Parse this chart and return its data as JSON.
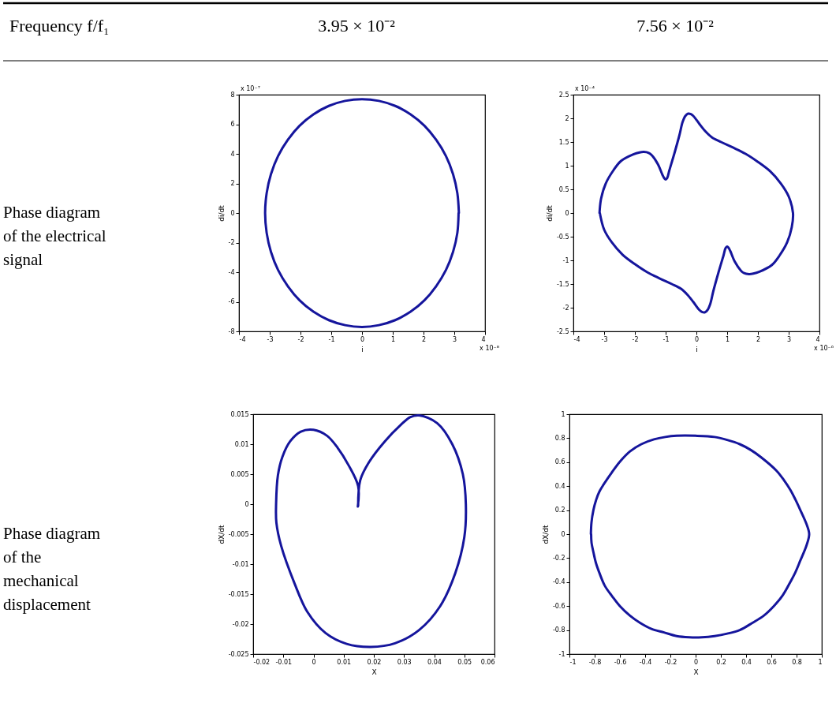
{
  "chart_data": [
    {
      "type": "other",
      "annotations": [
        "Frequency f/f₁",
        "3.95 × 10⁻²",
        "7.56 × 10⁻²",
        "Phase diagram of the electrical signal",
        "Phase diagram of the mechanical displacement"
      ]
    },
    {
      "type": "line",
      "xlabel": "i",
      "ylabel": "di/dt",
      "annotations": [
        "x 10⁻⁷",
        "x 10⁻⁸"
      ],
      "grid": false,
      "xlim": [
        -4,
        4
      ],
      "xticks": [
        -4,
        -3,
        -2,
        -1,
        0,
        1,
        2,
        3,
        4
      ],
      "ylim": [
        -8,
        8
      ],
      "yticks": [
        -8,
        -6,
        -4,
        -2,
        0,
        2,
        4,
        6,
        8
      ],
      "series": [
        {
          "color": "#15159c",
          "x": [
            3.15,
            3.1,
            2.96,
            2.73,
            2.41,
            2.03,
            1.58,
            1.08,
            0.55,
            0,
            -0.55,
            -1.08,
            -1.58,
            -2.03,
            -2.41,
            -2.73,
            -2.96,
            -3.1,
            -3.15,
            -3.1,
            -2.96,
            -2.73,
            -2.41,
            -2.03,
            -1.58,
            -1.08,
            -0.55,
            0,
            0.55,
            1.08,
            1.58,
            2.03,
            2.41,
            2.73,
            2.96,
            3.1,
            3.14
          ],
          "values": [
            0,
            1.34,
            2.63,
            3.85,
            4.95,
            5.9,
            6.67,
            7.24,
            7.58,
            7.7,
            7.58,
            7.24,
            6.67,
            5.9,
            4.95,
            3.85,
            2.63,
            1.34,
            0,
            -1.34,
            -2.63,
            -3.85,
            -4.95,
            -5.9,
            -6.67,
            -7.24,
            -7.58,
            -7.7,
            -7.58,
            -7.24,
            -6.67,
            -5.9,
            -4.95,
            -3.85,
            -2.63,
            -1.34,
            0
          ]
        }
      ]
    },
    {
      "type": "line",
      "xlabel": "i",
      "ylabel": "di/dt",
      "annotations": [
        "x 10⁻⁴",
        "x 10⁻⁶"
      ],
      "grid": false,
      "xlim": [
        -4,
        4
      ],
      "xticks": [
        -4,
        -3,
        -2,
        -1,
        0,
        1,
        2,
        3,
        4
      ],
      "ylim": [
        -2.5,
        2.5
      ],
      "yticks": [
        -2.5,
        -2,
        -1.5,
        -1,
        -0.5,
        0,
        0.5,
        1,
        1.5,
        2,
        2.5
      ],
      "series": [
        {
          "color": "#15159c",
          "x": [
            -3.15,
            -3.1,
            -2.95,
            -2.7,
            -2.45,
            -2.05,
            -1.85,
            -1.71,
            -1.55,
            -1.45,
            -1.25,
            -1.1,
            -1.04,
            -1.0,
            -0.95,
            -0.88,
            -0.72,
            -0.55,
            -0.45,
            -0.36,
            -0.27,
            -0.18,
            -0.1,
            0.1,
            0.3,
            0.5,
            0.8,
            1.2,
            1.6,
            2.0,
            2.4,
            2.75,
            3.0,
            3.14,
            3.1,
            2.95,
            2.7,
            2.45,
            2.05,
            1.85,
            1.71,
            1.55,
            1.45,
            1.25,
            1.1,
            1.04,
            1.0,
            0.95,
            0.88,
            0.72,
            0.55,
            0.45,
            0.36,
            0.27,
            0.18,
            0.1,
            -0.1,
            -0.3,
            -0.5,
            -0.8,
            -1.2,
            -1.6,
            -2.0,
            -2.4,
            -2.75,
            -3.0,
            -3.14
          ],
          "values": [
            0,
            0.3,
            0.62,
            0.9,
            1.1,
            1.24,
            1.28,
            1.29,
            1.27,
            1.22,
            1.03,
            0.8,
            0.73,
            0.71,
            0.74,
            0.9,
            1.25,
            1.65,
            1.92,
            2.05,
            2.1,
            2.09,
            2.05,
            1.88,
            1.72,
            1.6,
            1.5,
            1.38,
            1.25,
            1.08,
            0.88,
            0.62,
            0.35,
            0,
            -0.3,
            -0.62,
            -0.9,
            -1.1,
            -1.24,
            -1.28,
            -1.29,
            -1.27,
            -1.22,
            -1.03,
            -0.8,
            -0.73,
            -0.71,
            -0.74,
            -0.9,
            -1.25,
            -1.65,
            -1.92,
            -2.05,
            -2.1,
            -2.09,
            -2.05,
            -1.88,
            -1.72,
            -1.6,
            -1.5,
            -1.38,
            -1.25,
            -1.08,
            -0.88,
            -0.62,
            -0.35,
            0
          ]
        }
      ]
    },
    {
      "type": "line",
      "xlabel": "X",
      "ylabel": "dX/dt",
      "grid": false,
      "xlim": [
        -0.02,
        0.06
      ],
      "xticks": [
        -0.02,
        -0.01,
        0,
        0.01,
        0.02,
        0.03,
        0.04,
        0.05,
        0.06
      ],
      "ylim": [
        -0.025,
        0.015
      ],
      "yticks": [
        -0.025,
        -0.02,
        -0.015,
        -0.01,
        -0.005,
        0,
        0.005,
        0.01,
        0.015
      ],
      "series": [
        {
          "color": "#15159c",
          "x": [
            0.0147,
            0.0148,
            0.0115,
            0.008,
            0.0045,
            0.0,
            -0.0042,
            -0.0077,
            -0.0103,
            -0.0118,
            -0.0124,
            -0.0123,
            -0.0107,
            -0.0063,
            -0.002,
            0.004,
            0.011,
            0.019,
            0.027,
            0.035,
            0.042,
            0.047,
            0.05,
            0.0505,
            0.0495,
            0.046,
            0.041,
            0.035,
            0.032,
            0.0289,
            0.0237,
            0.0184,
            0.0155,
            0.0148
          ],
          "values": [
            -0.0004,
            0.003,
            0.0066,
            0.0094,
            0.0114,
            0.0124,
            0.0121,
            0.0105,
            0.0079,
            0.0048,
            0.0,
            -0.0031,
            -0.007,
            -0.0132,
            -0.018,
            -0.0215,
            -0.0233,
            -0.0238,
            -0.0232,
            -0.021,
            -0.017,
            -0.0115,
            -0.0055,
            0.0,
            0.005,
            0.01,
            0.0135,
            0.0148,
            0.0145,
            0.0132,
            0.0105,
            0.007,
            0.004,
            -0.0003
          ]
        }
      ]
    },
    {
      "type": "line",
      "xlabel": "X",
      "ylabel": "dX/dt",
      "grid": false,
      "xlim": [
        -1,
        1
      ],
      "xticks": [
        -1,
        -0.8,
        -0.6,
        -0.4,
        -0.2,
        0,
        0.2,
        0.4,
        0.6,
        0.8,
        1
      ],
      "ylim": [
        -1,
        1
      ],
      "yticks": [
        -1,
        -0.8,
        -0.6,
        -0.4,
        -0.2,
        0,
        0.2,
        0.4,
        0.6,
        0.8,
        1
      ],
      "series": [
        {
          "color": "#15159c",
          "x": [
            -0.83,
            -0.825,
            -0.81,
            -0.79,
            -0.76,
            -0.66,
            -0.595,
            -0.52,
            -0.43,
            -0.33,
            -0.24,
            -0.15,
            0.0,
            0.15,
            0.25,
            0.35,
            0.44,
            0.52,
            0.64,
            0.7,
            0.75,
            0.79,
            0.83,
            0.88,
            0.9,
            0.88,
            0.83,
            0.79,
            0.74,
            0.69,
            0.62,
            0.54,
            0.45,
            0.35,
            0.25,
            0.15,
            0.05,
            -0.05,
            -0.15,
            -0.25,
            -0.35,
            -0.44,
            -0.52,
            -0.6,
            -0.66,
            -0.72,
            -0.76,
            -0.79,
            -0.81,
            -0.825,
            -0.828
          ],
          "values": [
            0,
            0.1,
            0.2,
            0.28,
            0.36,
            0.52,
            0.61,
            0.69,
            0.75,
            0.79,
            0.81,
            0.82,
            0.82,
            0.81,
            0.785,
            0.75,
            0.7,
            0.64,
            0.53,
            0.45,
            0.37,
            0.29,
            0.2,
            0.08,
            0,
            -0.09,
            -0.22,
            -0.32,
            -0.42,
            -0.51,
            -0.6,
            -0.68,
            -0.74,
            -0.8,
            -0.83,
            -0.85,
            -0.86,
            -0.86,
            -0.85,
            -0.82,
            -0.79,
            -0.74,
            -0.68,
            -0.6,
            -0.52,
            -0.43,
            -0.33,
            -0.24,
            -0.15,
            -0.07,
            0
          ]
        }
      ]
    }
  ]
}
